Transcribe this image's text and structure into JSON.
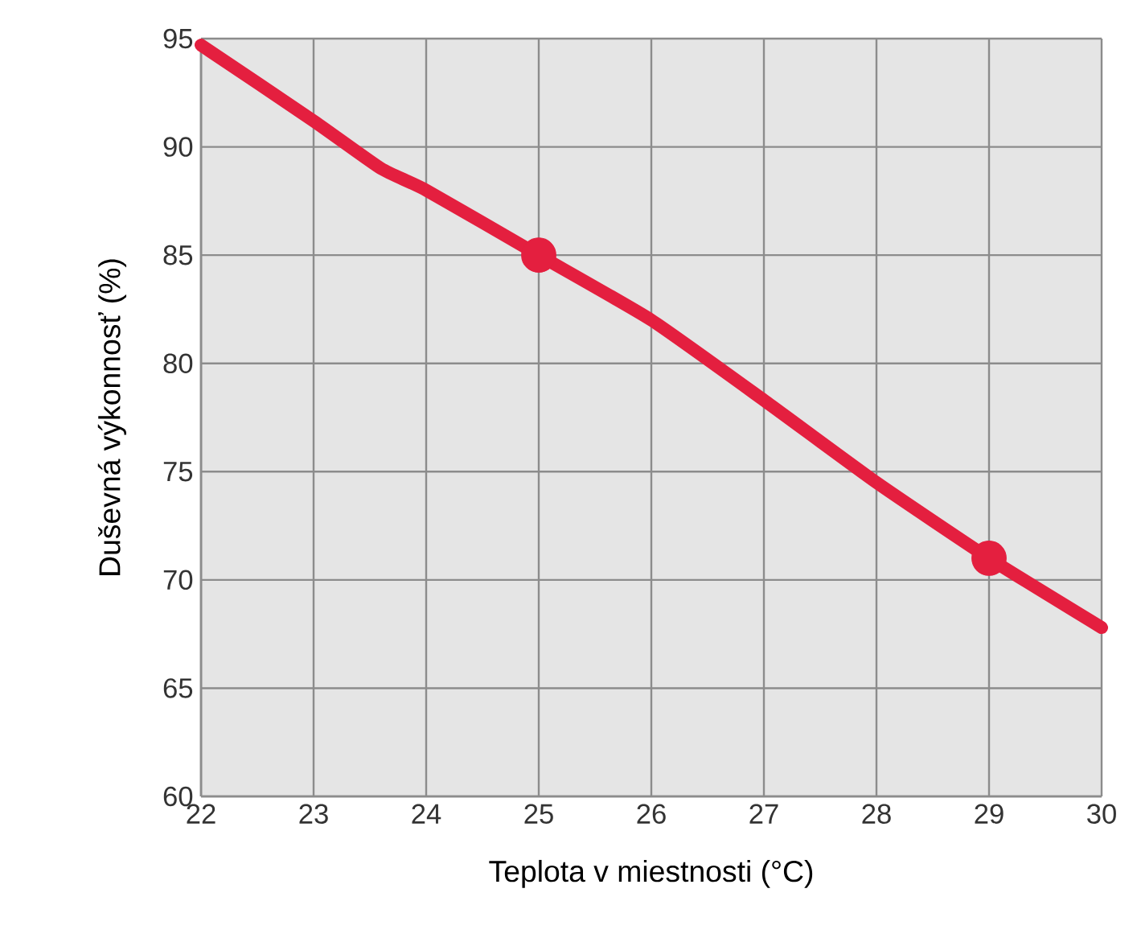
{
  "chart_data": {
    "type": "line",
    "xlabel": "Teplota v miestnosti (°C)",
    "ylabel": "Duševná výkonnosť (%)",
    "xlim": [
      22,
      30
    ],
    "ylim": [
      60,
      95
    ],
    "xticks": [
      22,
      23,
      24,
      25,
      26,
      27,
      28,
      29,
      30
    ],
    "yticks": [
      60,
      65,
      70,
      75,
      80,
      85,
      90,
      95
    ],
    "grid": true,
    "series": [
      {
        "color": "#e41f3f",
        "x": [
          22,
          23,
          23.6,
          24,
          25,
          26,
          27,
          28,
          29,
          30
        ],
        "values": [
          94.7,
          91.2,
          89,
          88,
          85,
          82,
          78.3,
          74.5,
          71,
          67.8
        ]
      },
      {
        "type": "scatter",
        "color": "#e41f3f",
        "x": [
          25,
          29
        ],
        "values": [
          85,
          71
        ]
      }
    ]
  }
}
